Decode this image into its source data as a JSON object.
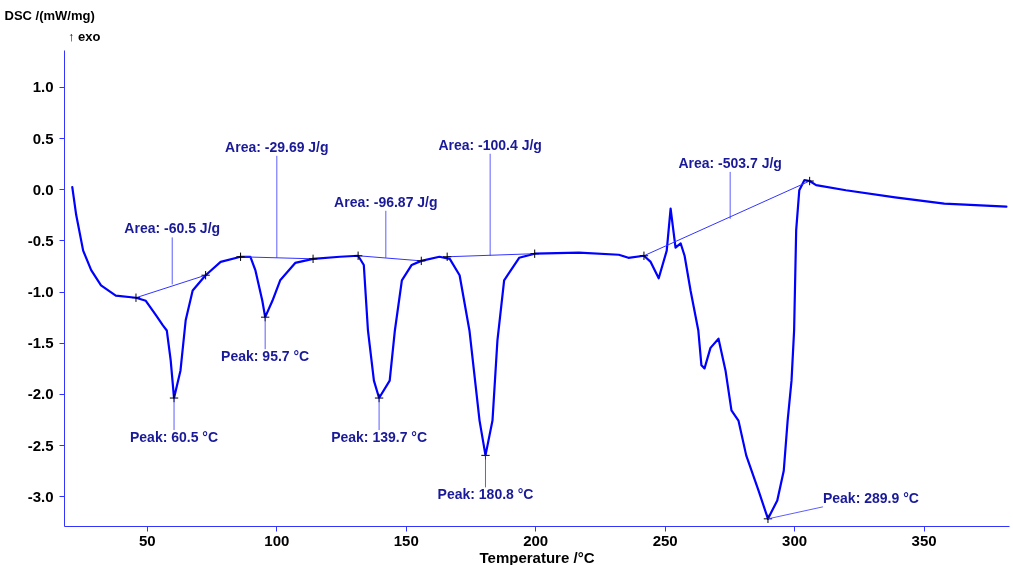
{
  "chart_data": {
    "type": "line",
    "xlabel": "Temperature /°C",
    "ylabel": "DSC /(mW/mg)",
    "xlim": [
      18,
      383
    ],
    "ylim": [
      -3.29,
      1.36
    ],
    "xticks": [
      50,
      100,
      150,
      200,
      250,
      300,
      350
    ],
    "yticks": [
      {
        "value": 1,
        "label": "1.0"
      },
      {
        "value": 0.5,
        "label": "0.5"
      },
      {
        "value": 0,
        "label": "0.0"
      },
      {
        "value": -0.5,
        "label": "-0.5"
      },
      {
        "value": -1,
        "label": "-1.0"
      },
      {
        "value": -1.5,
        "label": "-1.5"
      },
      {
        "value": -2,
        "label": "-2.0"
      },
      {
        "value": -2.5,
        "label": "-2.5"
      },
      {
        "value": -3,
        "label": "-3.0"
      }
    ],
    "series": [
      {
        "color": "#0000ff",
        "x": [
          21.2,
          22.7,
          25.4,
          28.5,
          32.3,
          38,
          45.8,
          49.6,
          53.5,
          56.2,
          57.7,
          59.2,
          60.5,
          63,
          65,
          67.7,
          72.7,
          78.5,
          86.2,
          90,
          91.9,
          94.6,
          95.7,
          98.5,
          101.5,
          107.3,
          114.2,
          124.6,
          131.6,
          133.8,
          135.4,
          137.7,
          139.7,
          143.8,
          145.8,
          148.5,
          152.3,
          156,
          163,
          167,
          170.8,
          174.6,
          178.5,
          180.8,
          183.5,
          185.4,
          188,
          193.8,
          199.8,
          216.9,
          232.3,
          236,
          242,
          244.6,
          247.7,
          250.8,
          252.3,
          254.2,
          256.2,
          257.7,
          260,
          263,
          264.2,
          265.4,
          267.7,
          270.8,
          273.5,
          275.8,
          278.5,
          281.5,
          286.2,
          289.9,
          293.5,
          296,
          297.5,
          299,
          300,
          300.8,
          302,
          304,
          306,
          308.5,
          320,
          339,
          358,
          382
        ],
        "values": [
          0.02,
          -0.25,
          -0.6,
          -0.79,
          -0.94,
          -1.04,
          -1.06,
          -1.09,
          -1.23,
          -1.33,
          -1.38,
          -1.67,
          -2.04,
          -1.77,
          -1.28,
          -0.99,
          -0.84,
          -0.71,
          -0.66,
          -0.66,
          -0.79,
          -1.09,
          -1.25,
          -1.09,
          -0.89,
          -0.72,
          -0.68,
          -0.66,
          -0.65,
          -0.74,
          -1.38,
          -1.87,
          -2.04,
          -1.87,
          -1.38,
          -0.89,
          -0.74,
          -0.7,
          -0.66,
          -0.68,
          -0.84,
          -1.38,
          -2.26,
          -2.6,
          -2.26,
          -1.48,
          -0.89,
          -0.67,
          -0.63,
          -0.62,
          -0.64,
          -0.67,
          -0.65,
          -0.71,
          -0.87,
          -0.6,
          -0.19,
          -0.57,
          -0.53,
          -0.65,
          -0.99,
          -1.38,
          -1.72,
          -1.75,
          -1.55,
          -1.46,
          -1.77,
          -2.16,
          -2.26,
          -2.6,
          -2.94,
          -3.22,
          -3.04,
          -2.75,
          -2.26,
          -1.87,
          -1.38,
          -0.4,
          -0.01,
          0.09,
          0.08,
          0.04,
          -0.01,
          -0.08,
          -0.14,
          -0.17
        ]
      },
      {
        "type": "line",
        "color": "#3333ff",
        "x": [
          45.8,
          72.7
        ],
        "values": [
          -1.06,
          -0.84
        ]
      },
      {
        "type": "line",
        "color": "#3333ff",
        "x": [
          86.2,
          114.2
        ],
        "values": [
          -0.66,
          -0.68
        ]
      },
      {
        "type": "line",
        "color": "#3333ff",
        "x": [
          131.6,
          156
        ],
        "values": [
          -0.65,
          -0.7
        ]
      },
      {
        "type": "line",
        "color": "#3333ff",
        "x": [
          166,
          199.8
        ],
        "values": [
          -0.66,
          -0.63
        ]
      },
      {
        "type": "line",
        "color": "#3333ff",
        "x": [
          242,
          306
        ],
        "values": [
          -0.65,
          0.08
        ]
      },
      {
        "type": "scatter",
        "marker": "cross",
        "color": "#000000",
        "x": [
          45.8,
          60.5,
          72.7,
          86.2,
          95.7,
          114.2,
          131.6,
          139.7,
          156,
          166,
          180.8,
          199.8,
          242,
          289.9,
          306
        ],
        "values": [
          -1.06,
          -2.04,
          -0.84,
          -0.66,
          -1.25,
          -0.68,
          -0.65,
          -2.04,
          -0.7,
          -0.66,
          -2.6,
          -0.63,
          -0.65,
          -3.22,
          0.08
        ]
      }
    ],
    "annotations": [
      "↑ exo",
      {
        "text": "Area: -60.5 J/g",
        "x": 59.8,
        "y": -0.93
      },
      {
        "text": "Area: -29.69 J/g",
        "x": 100.2,
        "y": -0.67
      },
      {
        "text": "Area: -96.87 J/g",
        "x": 142.3,
        "y": -0.67
      },
      {
        "text": "Area: -100.4 J/g",
        "x": 182.6,
        "y": -0.65
      },
      {
        "text": "Area: -503.7 J/g",
        "x": 275.3,
        "y": -0.29
      },
      {
        "text": "Peak: 60.5 °C",
        "x": 60.5,
        "y": -2.04
      },
      {
        "text": "Peak: 95.7 °C",
        "x": 95.7,
        "y": -1.25
      },
      {
        "text": "Peak: 139.7 °C",
        "x": 139.7,
        "y": -2.04
      },
      {
        "text": "Peak: 180.8 °C",
        "x": 180.8,
        "y": -2.6
      },
      {
        "text": "Peak: 289.9 °C",
        "x": 289.9,
        "y": -3.22
      }
    ]
  }
}
